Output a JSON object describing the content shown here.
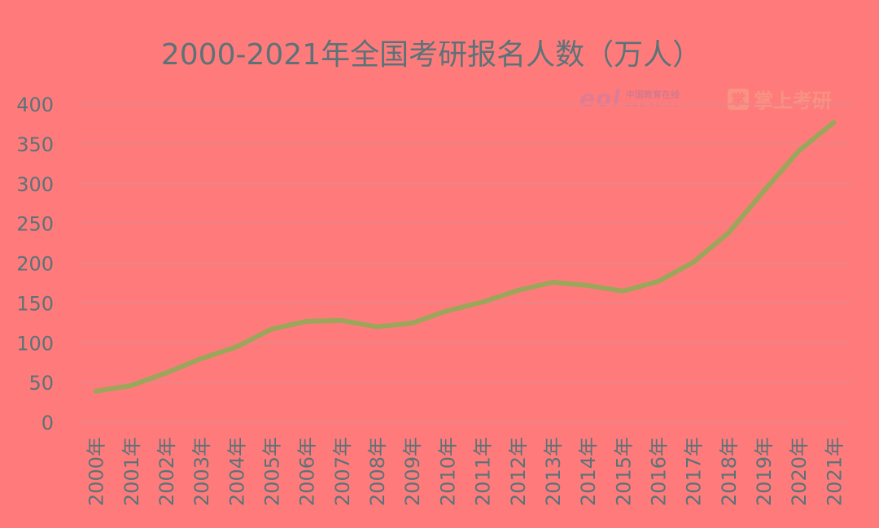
{
  "chart_data": {
    "type": "line",
    "title": "2000-2021年全国考研报名人数（万人）",
    "categories": [
      "2000年",
      "2001年",
      "2002年",
      "2003年",
      "2004年",
      "2005年",
      "2006年",
      "2007年",
      "2008年",
      "2009年",
      "2010年",
      "2011年",
      "2012年",
      "2013年",
      "2014年",
      "2015年",
      "2016年",
      "2017年",
      "2018年",
      "2019年",
      "2020年",
      "2021年"
    ],
    "series": [
      {
        "values": [
          39,
          46,
          62,
          80,
          94.5,
          117,
          127,
          128,
          120,
          124.6,
          140,
          151,
          165.6,
          176,
          172,
          164.9,
          177,
          201,
          238,
          290,
          341,
          377
        ]
      }
    ],
    "yticks": [
      0,
      50,
      100,
      150,
      200,
      250,
      300,
      350,
      400
    ],
    "ylim": [
      0,
      400
    ],
    "grid": true,
    "legend": "none",
    "colors": {
      "line": "#9BA65A",
      "grid": "#E8868A",
      "text": "#5B7378"
    }
  },
  "watermarks": {
    "eol_logo": "eol",
    "eol_cn": "中国教育在线",
    "eol_en": "www.eol.cn",
    "zsky_badge": "掌",
    "zsky_text": "掌上考研"
  }
}
